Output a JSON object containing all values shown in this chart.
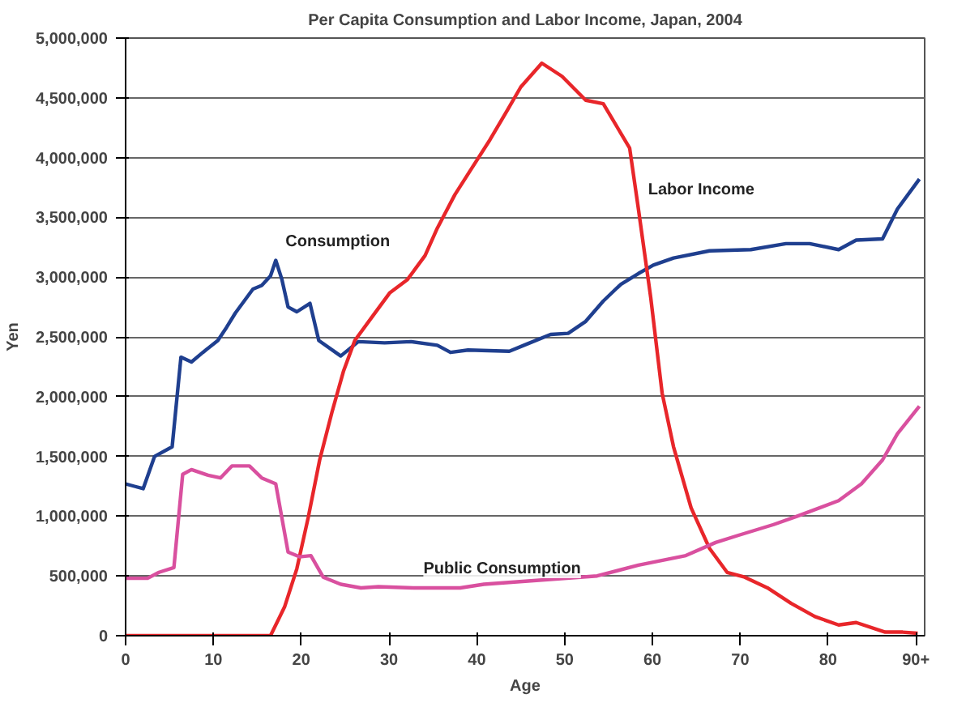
{
  "chart_data": {
    "type": "line",
    "title": "Per Capita Consumption and Labor Income, Japan, 2004",
    "xlabel": "Age",
    "ylabel": "Yen",
    "xlim": [
      0,
      91
    ],
    "xticks": [
      0,
      10,
      20,
      30,
      40,
      50,
      60,
      70,
      80,
      {
        "value": 90,
        "label": "90+"
      }
    ],
    "ylim": [
      0,
      5000000
    ],
    "yticks": [
      {
        "value": 0,
        "label": "0"
      },
      {
        "value": 500000,
        "label": "500,000"
      },
      {
        "value": 1000000,
        "label": "1,000,000"
      },
      {
        "value": 1500000,
        "label": "1,500,000"
      },
      {
        "value": 2000000,
        "label": "2,000,000"
      },
      {
        "value": 2500000,
        "label": "2,500,000"
      },
      {
        "value": 3000000,
        "label": "3,000,000"
      },
      {
        "value": 3500000,
        "label": "3,500,000"
      },
      {
        "value": 4000000,
        "label": "4,000,000"
      },
      {
        "value": 4500000,
        "label": "4,500,000"
      },
      {
        "value": 5000000,
        "label": "5,000,000"
      }
    ],
    "grid": "y",
    "marker": "none",
    "line_style": "solid",
    "series": [
      {
        "color": "#1f3f8f",
        "x": [
          0,
          1,
          2,
          3.3,
          5.3,
          6.3,
          7.5,
          8.8,
          10.5,
          11.5,
          12.5,
          14.5,
          15.5,
          16.5,
          17.1,
          17.8,
          18.5,
          19.5,
          21,
          22,
          24.5,
          26.5,
          29.5,
          32.5,
          35.5,
          37,
          39,
          43.7,
          45.7,
          48.4,
          50.4,
          52.4,
          54.4,
          56.4,
          58.4,
          60.1,
          62.4,
          66.5,
          71.2,
          75.2,
          77.9,
          81.2,
          83.2,
          86.2,
          87.9,
          90.4
        ],
        "values": [
          1270000,
          1250000,
          1230000,
          1500000,
          1580000,
          2330000,
          2290000,
          2370000,
          2470000,
          2580000,
          2700000,
          2900000,
          2930000,
          3010000,
          3140000,
          2980000,
          2750000,
          2710000,
          2780000,
          2470000,
          2340000,
          2460000,
          2450000,
          2460000,
          2430000,
          2370000,
          2390000,
          2380000,
          2440000,
          2520000,
          2530000,
          2630000,
          2800000,
          2940000,
          3030000,
          3100000,
          3160000,
          3220000,
          3230000,
          3280000,
          3280000,
          3230000,
          3310000,
          3320000,
          3570000,
          3820000
        ]
      },
      {
        "color": "#e8262a",
        "x": [
          0,
          16.5,
          18.1,
          19.5,
          20.8,
          22.1,
          23.5,
          24.8,
          26.1,
          28.1,
          30.1,
          32.1,
          34.1,
          35.5,
          37.5,
          39.5,
          41.5,
          43.5,
          45,
          47.4,
          49.7,
          52.4,
          54.4,
          57.4,
          58.4,
          59.8,
          61.1,
          62.4,
          64.4,
          66.5,
          68.5,
          70.5,
          73.1,
          75.8,
          78.5,
          81.2,
          83.2,
          86.5,
          88.5,
          90.2
        ],
        "values": [
          0,
          0,
          240000,
          560000,
          990000,
          1470000,
          1870000,
          2210000,
          2470000,
          2670000,
          2870000,
          2980000,
          3180000,
          3410000,
          3690000,
          3920000,
          4150000,
          4400000,
          4590000,
          4790000,
          4680000,
          4480000,
          4450000,
          4080000,
          3570000,
          2830000,
          2030000,
          1580000,
          1070000,
          730000,
          530000,
          490000,
          400000,
          270000,
          160000,
          90000,
          110000,
          30000,
          30000,
          20000
        ]
      },
      {
        "color": "#d9509f",
        "x": [
          0,
          2.5,
          3.8,
          5.5,
          6.5,
          7.5,
          9.5,
          10.8,
          12.1,
          14.1,
          15.5,
          17.1,
          18.5,
          19.8,
          21.1,
          22.5,
          24.5,
          26.8,
          28.8,
          32.8,
          38.1,
          40.8,
          53.7,
          58.4,
          63.8,
          67.2,
          69.8,
          73.8,
          76.5,
          81.2,
          83.8,
          86.2,
          87.9,
          90.4
        ],
        "values": [
          480000,
          480000,
          530000,
          570000,
          1350000,
          1390000,
          1340000,
          1320000,
          1420000,
          1420000,
          1320000,
          1270000,
          700000,
          660000,
          670000,
          490000,
          430000,
          400000,
          410000,
          400000,
          400000,
          430000,
          500000,
          590000,
          670000,
          780000,
          840000,
          930000,
          1000000,
          1130000,
          1270000,
          1470000,
          1690000,
          1920000
        ]
      }
    ],
    "annotations": [
      {
        "text": "Consumption",
        "x": 17.1,
        "y": 3140000
      },
      {
        "text": "Labor Income",
        "x": 58.4,
        "y": 3570000
      },
      {
        "text": "Public Consumption",
        "x": 32.8,
        "y": 400000
      }
    ]
  }
}
